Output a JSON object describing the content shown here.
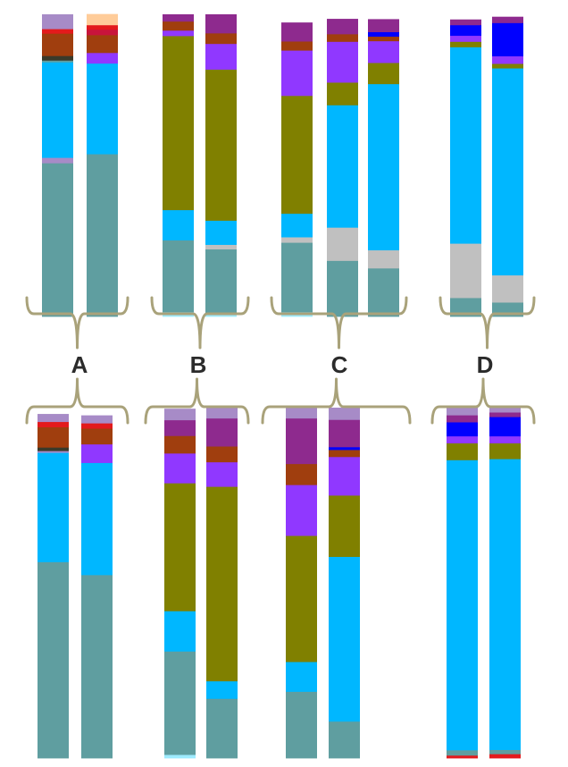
{
  "chart_data": {
    "type": "bar",
    "stacked": true,
    "normalized": true,
    "groups": [
      "A",
      "B",
      "C",
      "D"
    ],
    "palette": {
      "teal": "#5F9EA0",
      "cyan": "#00B7FF",
      "olive": "#808000",
      "violet": "#9038FF",
      "plum": "#8E2A8E",
      "rust": "#A03E0E",
      "lilac": "#A78BC7",
      "gray": "#C0C0C0",
      "peach": "#FFCC99",
      "red": "#E31A1C",
      "blue": "#0000FF",
      "dark": "#3A3A2A",
      "lightcyan": "#9EEBFF",
      "crimson": "#C8143C"
    },
    "rows": [
      {
        "groups": [
          {
            "label": "A",
            "bars": [
              [
                [
                  "teal",
                  0.508
                ],
                [
                  "lilac",
                  0.018
                ],
                [
                  "cyan",
                  0.316
                ],
                [
                  "teal",
                  0.006
                ],
                [
                  "dark",
                  0.015
                ],
                [
                  "rust",
                  0.074
                ],
                [
                  "red",
                  0.015
                ],
                [
                  "lilac",
                  0.048
                ]
              ],
              [
                [
                  "teal",
                  0.538
                ],
                [
                  "cyan",
                  0.3
                ],
                [
                  "violet",
                  0.035
                ],
                [
                  "rust",
                  0.059
                ],
                [
                  "crimson",
                  0.018
                ],
                [
                  "red",
                  0.015
                ],
                [
                  "peach",
                  0.036
                ]
              ]
            ]
          },
          {
            "label": "B",
            "bars": [
              [
                [
                  "lightcyan",
                  0.015
                ],
                [
                  "teal",
                  0.238
                ],
                [
                  "cyan",
                  0.1
                ],
                [
                  "olive",
                  0.576
                ],
                [
                  "violet",
                  0.018
                ],
                [
                  "rust",
                  0.03
                ],
                [
                  "plum",
                  0.023
                ]
              ],
              [
                [
                  "lightcyan",
                  0.01
                ],
                [
                  "teal",
                  0.213
                ],
                [
                  "gray",
                  0.015
                ],
                [
                  "cyan",
                  0.08
                ],
                [
                  "olive",
                  0.5
                ],
                [
                  "violet",
                  0.085
                ],
                [
                  "rust",
                  0.035
                ],
                [
                  "plum",
                  0.062
                ]
              ]
            ]
          },
          {
            "label": "C",
            "bars": [
              [
                [
                  "lightcyan",
                  0.015
                ],
                [
                  "teal",
                  0.23
                ],
                [
                  "gray",
                  0.018
                ],
                [
                  "cyan",
                  0.078
                ],
                [
                  "olive",
                  0.39
                ],
                [
                  "violet",
                  0.15
                ],
                [
                  "rust",
                  0.03
                ],
                [
                  "plum",
                  0.062
                ]
              ],
              [
                [
                  "teal",
                  0.185
                ],
                [
                  "gray",
                  0.11
                ],
                [
                  "cyan",
                  0.405
                ],
                [
                  "olive",
                  0.075
                ],
                [
                  "violet",
                  0.135
                ],
                [
                  "rust",
                  0.025
                ],
                [
                  "plum",
                  0.05
                ]
              ],
              [
                [
                  "teal",
                  0.16
                ],
                [
                  "gray",
                  0.06
                ],
                [
                  "cyan",
                  0.55
                ],
                [
                  "olive",
                  0.07
                ],
                [
                  "violet",
                  0.072
                ],
                [
                  "rust",
                  0.015
                ],
                [
                  "blue",
                  0.015
                ],
                [
                  "plum",
                  0.042
                ]
              ]
            ]
          },
          {
            "label": "D",
            "bars": [
              [
                [
                  "teal",
                  0.062
                ],
                [
                  "gray",
                  0.18
                ],
                [
                  "cyan",
                  0.65
                ],
                [
                  "olive",
                  0.018
                ],
                [
                  "violet",
                  0.02
                ],
                [
                  "blue",
                  0.035
                ],
                [
                  "plum",
                  0.018
                ]
              ],
              [
                [
                  "teal",
                  0.047
                ],
                [
                  "gray",
                  0.09
                ],
                [
                  "cyan",
                  0.685
                ],
                [
                  "olive",
                  0.015
                ],
                [
                  "violet",
                  0.025
                ],
                [
                  "blue",
                  0.11
                ],
                [
                  "plum",
                  0.02
                ]
              ]
            ]
          }
        ]
      },
      {
        "groups": [
          {
            "label": "A",
            "bars": [
              [
                [
                  "teal",
                  0.56
                ],
                [
                  "cyan",
                  0.312
                ],
                [
                  "lilac",
                  0.005
                ],
                [
                  "dark",
                  0.01
                ],
                [
                  "rust",
                  0.058
                ],
                [
                  "red",
                  0.015
                ],
                [
                  "lilac",
                  0.022
                ]
              ],
              [
                [
                  "teal",
                  0.523
                ],
                [
                  "cyan",
                  0.32
                ],
                [
                  "violet",
                  0.053
                ],
                [
                  "rust",
                  0.045
                ],
                [
                  "red",
                  0.015
                ],
                [
                  "lilac",
                  0.022
                ]
              ]
            ]
          },
          {
            "label": "B",
            "bars": [
              [
                [
                  "lightcyan",
                  0.01
                ],
                [
                  "teal",
                  0.295
                ],
                [
                  "cyan",
                  0.115
                ],
                [
                  "olive",
                  0.365
                ],
                [
                  "violet",
                  0.085
                ],
                [
                  "rust",
                  0.05
                ],
                [
                  "plum",
                  0.045
                ],
                [
                  "lilac",
                  0.032
                ]
              ],
              [
                [
                  "teal",
                  0.17
                ],
                [
                  "cyan",
                  0.05
                ],
                [
                  "olive",
                  0.555
                ],
                [
                  "violet",
                  0.07
                ],
                [
                  "rust",
                  0.045
                ],
                [
                  "plum",
                  0.08
                ],
                [
                  "lilac",
                  0.03
                ]
              ]
            ]
          },
          {
            "label": "C",
            "bars": [
              [
                [
                  "teal",
                  0.19
                ],
                [
                  "cyan",
                  0.085
                ],
                [
                  "olive",
                  0.36
                ],
                [
                  "violet",
                  0.145
                ],
                [
                  "rust",
                  0.06
                ],
                [
                  "plum",
                  0.13
                ],
                [
                  "lilac",
                  0.03
                ]
              ],
              [
                [
                  "teal",
                  0.105
                ],
                [
                  "cyan",
                  0.47
                ],
                [
                  "olive",
                  0.175
                ],
                [
                  "violet",
                  0.11
                ],
                [
                  "rust",
                  0.02
                ],
                [
                  "blue",
                  0.008
                ],
                [
                  "plum",
                  0.078
                ],
                [
                  "lilac",
                  0.034
                ]
              ]
            ]
          },
          {
            "label": "D",
            "bars": [
              [
                [
                  "red",
                  0.008
                ],
                [
                  "teal",
                  0.015
                ],
                [
                  "cyan",
                  0.828
                ],
                [
                  "olive",
                  0.048
                ],
                [
                  "violet",
                  0.02
                ],
                [
                  "blue",
                  0.04
                ],
                [
                  "plum",
                  0.02
                ],
                [
                  "lilac",
                  0.021
                ]
              ],
              [
                [
                  "red",
                  0.012
                ],
                [
                  "teal",
                  0.012
                ],
                [
                  "cyan",
                  0.83
                ],
                [
                  "olive",
                  0.045
                ],
                [
                  "violet",
                  0.02
                ],
                [
                  "blue",
                  0.055
                ],
                [
                  "plum",
                  0.013
                ],
                [
                  "lilac",
                  0.013
                ]
              ]
            ]
          }
        ]
      }
    ]
  }
}
